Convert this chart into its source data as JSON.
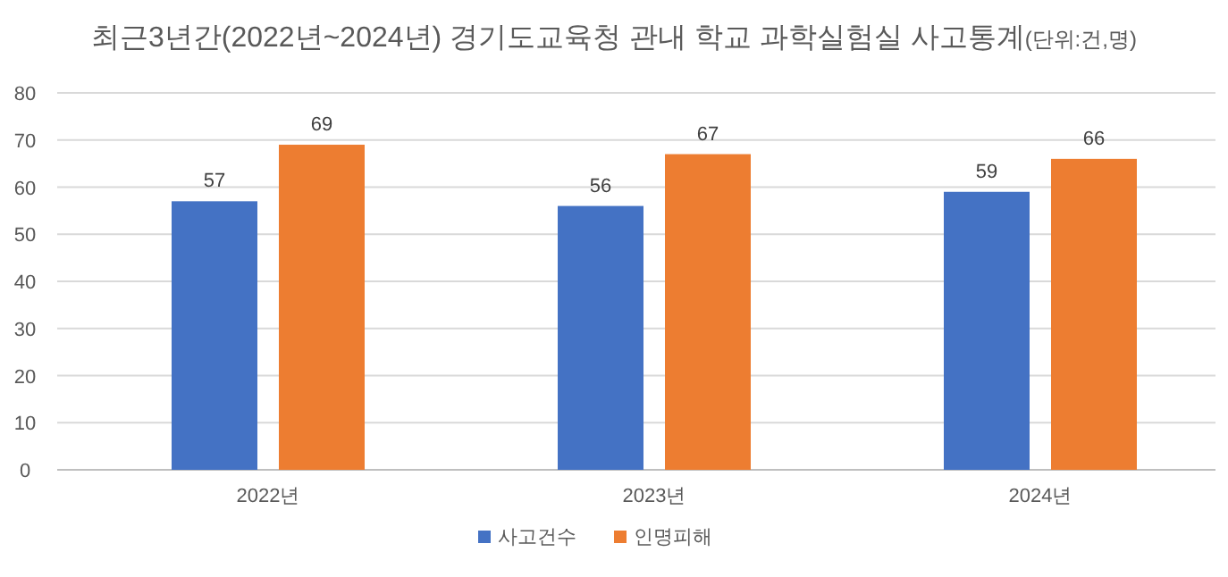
{
  "chart_data": {
    "type": "bar",
    "title": "최근3년간(2022년~2024년) 경기도교육청 관내 학교 과학실험실 사고통계",
    "subtitle": "(단위:건,명)",
    "categories": [
      "2022년",
      "2023년",
      "2024년"
    ],
    "series": [
      {
        "name": "사고건수",
        "color": "#4472c4",
        "values": [
          57,
          56,
          59
        ]
      },
      {
        "name": "인명피해",
        "color": "#ed7d31",
        "values": [
          69,
          67,
          66
        ]
      }
    ],
    "ylim": [
      0,
      80
    ],
    "yticks": [
      0,
      10,
      20,
      30,
      40,
      50,
      60,
      70,
      80
    ],
    "grid": "y",
    "legend": "bottom",
    "data_labels": true
  }
}
